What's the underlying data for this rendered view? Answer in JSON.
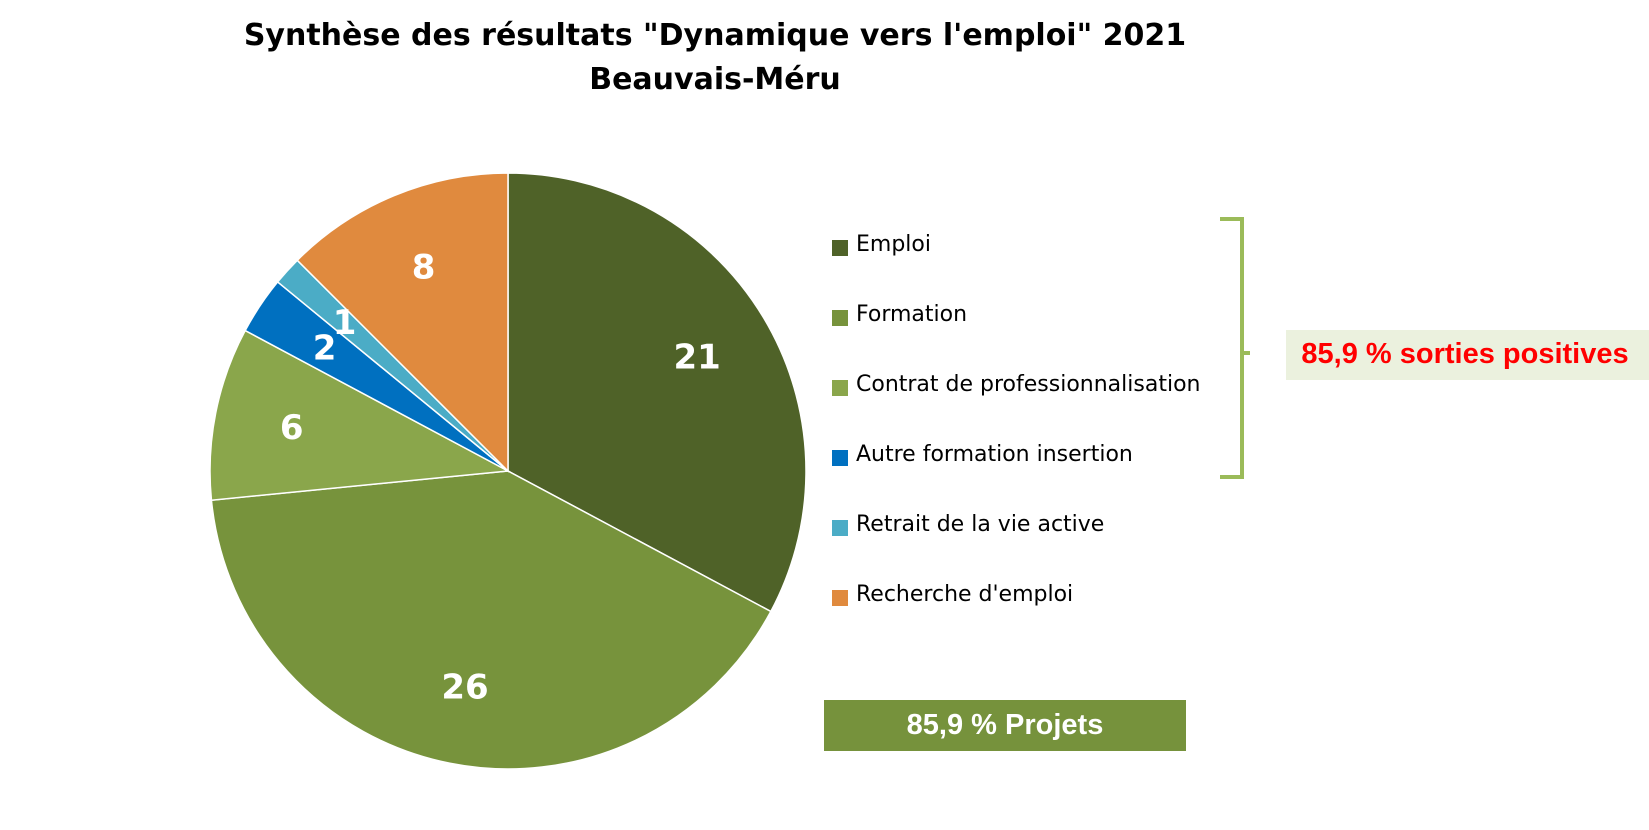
{
  "title": {
    "line1": "Synthèse des résultats \"Dynamique vers l'emploi\" 2021",
    "line2": "Beauvais-Méru"
  },
  "chart_data": {
    "type": "pie",
    "categories": [
      "Emploi",
      "Formation",
      "Contrat de  professionnalisation",
      "Autre formation insertion",
      "Retrait de la vie active",
      "Recherche d'emploi"
    ],
    "values": [
      21,
      26,
      6,
      2,
      1,
      8
    ],
    "colors": [
      "#4f6228",
      "#77933c",
      "#8aa64b",
      "#0070c0",
      "#4bacc6",
      "#e08a3e"
    ],
    "data_labels": [
      "21",
      "26",
      "6",
      "2",
      "1",
      "8"
    ],
    "legend_position": "right",
    "start_angle": "12 o'clock, clockwise"
  },
  "annotations": {
    "positive_text": "85,9 %  sorties positives",
    "positive_color": "#ff0000",
    "positive_bg": "#ebf1de",
    "projects_text": "85,9 %  Projets",
    "projects_bg": "#76923c"
  }
}
